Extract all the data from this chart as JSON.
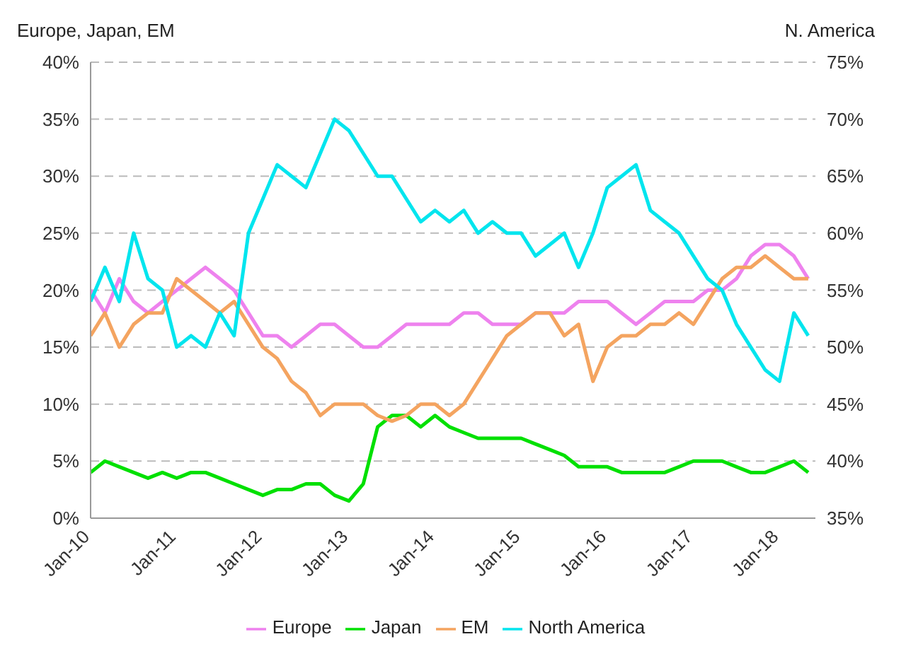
{
  "chart_data": {
    "type": "line",
    "ylabel": "Europe, Japan, EM",
    "y2label": "N. America",
    "x": [
      "2010-01",
      "2010-03",
      "2010-05",
      "2010-07",
      "2010-09",
      "2010-11",
      "2011-01",
      "2011-03",
      "2011-05",
      "2011-07",
      "2011-09",
      "2011-11",
      "2012-01",
      "2012-03",
      "2012-05",
      "2012-07",
      "2012-09",
      "2012-11",
      "2013-01",
      "2013-03",
      "2013-05",
      "2013-07",
      "2013-09",
      "2013-11",
      "2014-01",
      "2014-03",
      "2014-05",
      "2014-07",
      "2014-09",
      "2014-11",
      "2015-01",
      "2015-03",
      "2015-05",
      "2015-07",
      "2015-09",
      "2015-11",
      "2016-01",
      "2016-03",
      "2016-05",
      "2016-07",
      "2016-09",
      "2016-11",
      "2017-01",
      "2017-03",
      "2017-05",
      "2017-07",
      "2017-09",
      "2017-11",
      "2018-01",
      "2018-03",
      "2018-05"
    ],
    "series": [
      {
        "name": "Europe",
        "color": "#ee82ee",
        "values": [
          20,
          18,
          21,
          19,
          18,
          19,
          20,
          21,
          22,
          21,
          20,
          18,
          16,
          16,
          15,
          16,
          17,
          17,
          16,
          15,
          15,
          16,
          17,
          17,
          17,
          17,
          18,
          18,
          17,
          17,
          17,
          18,
          18,
          18,
          19,
          19,
          19,
          18,
          17,
          18,
          19,
          19,
          19,
          20,
          20,
          21,
          23,
          24,
          24,
          23,
          21
        ]
      },
      {
        "name": "Japan",
        "color": "#00e000",
        "values": [
          4,
          5,
          4.5,
          4,
          3.5,
          4,
          3.5,
          4,
          4,
          3.5,
          3,
          2.5,
          2,
          2.5,
          2.5,
          3,
          3,
          2,
          1.5,
          3,
          8,
          9,
          9,
          8,
          9,
          8,
          7.5,
          7,
          7,
          7,
          7,
          6.5,
          6,
          5.5,
          4.5,
          4.5,
          4.5,
          4,
          4,
          4,
          4,
          4.5,
          5,
          5,
          5,
          4.5,
          4,
          4,
          4.5,
          5,
          4
        ]
      },
      {
        "name": "EM",
        "color": "#f4a460",
        "values": [
          16,
          18,
          15,
          17,
          18,
          18,
          21,
          20,
          19,
          18,
          19,
          17,
          15,
          14,
          12,
          11,
          9,
          10,
          10,
          10,
          9,
          8.5,
          9,
          10,
          10,
          9,
          10,
          12,
          14,
          16,
          17,
          18,
          18,
          16,
          17,
          12,
          15,
          16,
          16,
          17,
          17,
          18,
          17,
          19,
          21,
          22,
          22,
          23,
          22,
          21,
          21
        ]
      },
      {
        "name": "North America",
        "color": "#00e5ee",
        "axis": "y2",
        "values": [
          54,
          57,
          54,
          60,
          56,
          55,
          50,
          51,
          50,
          53,
          51,
          60,
          63,
          66,
          65,
          64,
          67,
          70,
          69,
          67,
          65,
          65,
          63,
          61,
          62,
          61,
          62,
          60,
          61,
          60,
          60,
          58,
          59,
          60,
          57,
          60,
          64,
          65,
          66,
          62,
          61,
          60,
          58,
          56,
          55,
          52,
          50,
          48,
          47,
          53,
          51
        ]
      }
    ],
    "xlim": [
      "2010-01",
      "2018-06"
    ],
    "xticks": [
      {
        "value": "2010-01",
        "label": "Jan-10"
      },
      {
        "value": "2011-01",
        "label": "Jan-11"
      },
      {
        "value": "2012-01",
        "label": "Jan-12"
      },
      {
        "value": "2013-01",
        "label": "Jan-13"
      },
      {
        "value": "2014-01",
        "label": "Jan-14"
      },
      {
        "value": "2015-01",
        "label": "Jan-15"
      },
      {
        "value": "2016-01",
        "label": "Jan-16"
      },
      {
        "value": "2017-01",
        "label": "Jan-17"
      },
      {
        "value": "2018-01",
        "label": "Jan-18"
      }
    ],
    "ylim": [
      0,
      40
    ],
    "yticks": [
      {
        "value": 0,
        "label": "0%"
      },
      {
        "value": 5,
        "label": "5%"
      },
      {
        "value": 10,
        "label": "10%"
      },
      {
        "value": 15,
        "label": "15%"
      },
      {
        "value": 20,
        "label": "20%"
      },
      {
        "value": 25,
        "label": "25%"
      },
      {
        "value": 30,
        "label": "30%"
      },
      {
        "value": 35,
        "label": "35%"
      },
      {
        "value": 40,
        "label": "40%"
      }
    ],
    "y2lim": [
      35,
      75
    ],
    "y2ticks": [
      {
        "value": 35,
        "label": "35%"
      },
      {
        "value": 40,
        "label": "40%"
      },
      {
        "value": 45,
        "label": "45%"
      },
      {
        "value": 50,
        "label": "50%"
      },
      {
        "value": 55,
        "label": "55%"
      },
      {
        "value": 60,
        "label": "60%"
      },
      {
        "value": 65,
        "label": "65%"
      },
      {
        "value": 70,
        "label": "70%"
      },
      {
        "value": 75,
        "label": "75%"
      }
    ],
    "grid": "y",
    "legend": "bottom",
    "marker": "none",
    "line_style": "solid"
  }
}
